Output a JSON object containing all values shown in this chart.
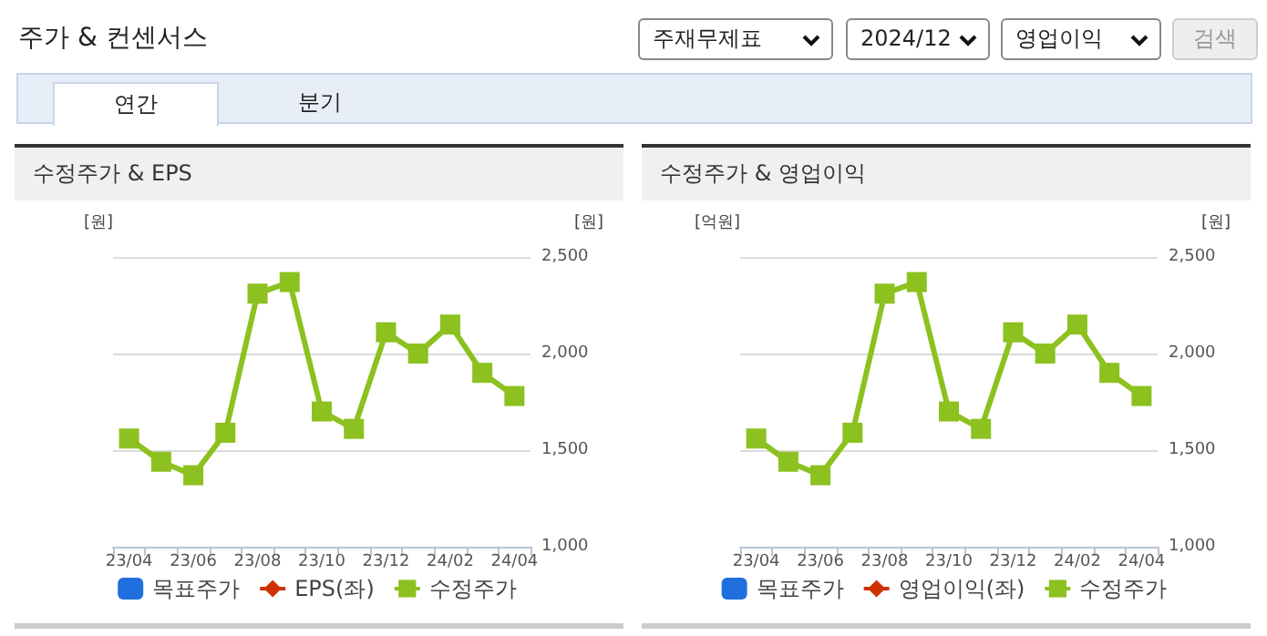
{
  "chart_data": [
    {
      "type": "line",
      "title": "수정주가 & EPS",
      "annotations": [
        "주가 & 컨센서스",
        "주재무제표",
        "2024/12",
        "영업이익",
        "검색",
        "연간",
        "분기"
      ],
      "ylabel": "[원]",
      "y2label": "[원]",
      "categories": [
        "23/04",
        null,
        "23/06",
        null,
        "23/08",
        null,
        "23/10",
        null,
        "23/12",
        null,
        "24/02",
        null,
        "24/04"
      ],
      "series": [
        {
          "name": "목표주가",
          "type": "bar",
          "color": "#1f6fde",
          "values": [
            null,
            null,
            null,
            null,
            null,
            null,
            null,
            null,
            null,
            null,
            null,
            null,
            null
          ]
        },
        {
          "name": "EPS(좌)",
          "marker": "diamond",
          "color": "#cc3300",
          "values": [
            null,
            null,
            null,
            null,
            null,
            null,
            null,
            null,
            null,
            null,
            null,
            null,
            null
          ]
        },
        {
          "name": "수정주가",
          "type": "line",
          "marker": "square",
          "axis": "y2",
          "color": "#8cc11f",
          "values": [
            1560,
            1440,
            1370,
            1590,
            2310,
            2370,
            1700,
            1610,
            2110,
            2000,
            2150,
            1900,
            1780
          ]
        }
      ],
      "y2lim": [
        1000,
        2500
      ],
      "y2ticks": [
        {
          "value": 1000,
          "label": "1,000"
        },
        {
          "value": 1500,
          "label": "1,500"
        },
        {
          "value": 2000,
          "label": "2,000"
        },
        {
          "value": 2500,
          "label": "2,500"
        }
      ],
      "grid": "y",
      "legend": "bottom"
    },
    {
      "type": "line",
      "title": "수정주가 & 영업이익",
      "ylabel": "[억원]",
      "y2label": "[원]",
      "categories": [
        "23/04",
        null,
        "23/06",
        null,
        "23/08",
        null,
        "23/10",
        null,
        "23/12",
        null,
        "24/02",
        null,
        "24/04"
      ],
      "series": [
        {
          "name": "목표주가",
          "type": "bar",
          "color": "#1f6fde",
          "values": [
            null,
            null,
            null,
            null,
            null,
            null,
            null,
            null,
            null,
            null,
            null,
            null,
            null
          ]
        },
        {
          "name": "영업이익(좌)",
          "marker": "diamond",
          "color": "#cc3300",
          "values": [
            null,
            null,
            null,
            null,
            null,
            null,
            null,
            null,
            null,
            null,
            null,
            null,
            null
          ]
        },
        {
          "name": "수정주가",
          "type": "line",
          "marker": "square",
          "axis": "y2",
          "color": "#8cc11f",
          "values": [
            1560,
            1440,
            1370,
            1590,
            2310,
            2370,
            1700,
            1610,
            2110,
            2000,
            2150,
            1900,
            1780
          ]
        }
      ],
      "y2lim": [
        1000,
        2500
      ],
      "y2ticks": [
        {
          "value": 1000,
          "label": "1,000"
        },
        {
          "value": 1500,
          "label": "1,500"
        },
        {
          "value": 2000,
          "label": "2,000"
        },
        {
          "value": 2500,
          "label": "2,500"
        }
      ],
      "grid": "y",
      "legend": "bottom"
    }
  ]
}
